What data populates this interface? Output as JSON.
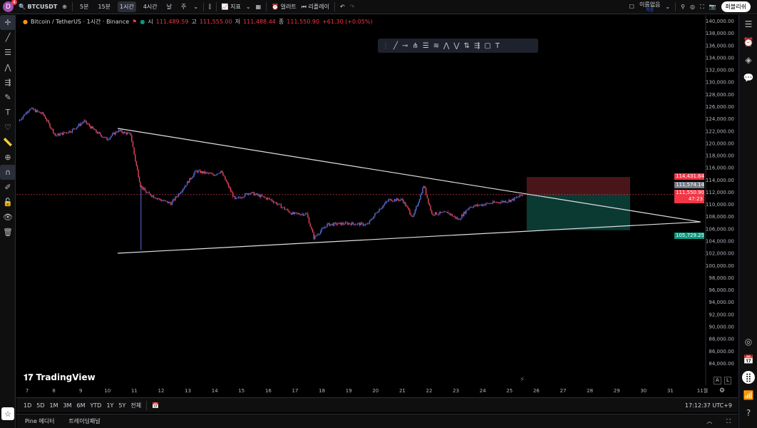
{
  "topbar": {
    "avatar_letter": "D",
    "notification_count": "4",
    "symbol": "BTCUSDT",
    "intervals": [
      "5분",
      "15분",
      "1시간",
      "4시간",
      "날",
      "주"
    ],
    "active_interval": "1시간",
    "indicators_label": "지표",
    "alerts_label": "얼러트",
    "replay_label": "리플레이",
    "layout_name": "이름없음",
    "layout_sub": "저장",
    "publish_label": "퍼블리쉬"
  },
  "legend": {
    "title": "Bitcoin / TetherUS · 1시간 · Binance",
    "open_label": "시",
    "open": "111,489.59",
    "high_label": "고",
    "high": "111,555.00",
    "low_label": "저",
    "low": "111,488.44",
    "close_label": "종",
    "close": "111,550.90",
    "change": "+61.30 (+0.05%)"
  },
  "price_labels": {
    "target": "114,431.64",
    "last": "111,574.14",
    "current": "111,550.90",
    "countdown": "47:23",
    "stop": "105,729.25"
  },
  "watermark": "TradingView",
  "range_buttons": [
    "1D",
    "5D",
    "1M",
    "3M",
    "6M",
    "YTD",
    "1Y",
    "5Y",
    "전체"
  ],
  "clock": "17:12:37 UTC+9",
  "bottom_tabs": [
    "Pine 에디터",
    "트레이딩패널"
  ],
  "axis_scale_buttons": [
    "A",
    "L"
  ],
  "colors": {
    "up": "#5b6fe0",
    "down": "#e8455a",
    "target_zone": "#4a1519",
    "stop_zone": "#0b3a32",
    "label_red": "#f23645",
    "label_green": "#089981"
  },
  "chart_data": {
    "type": "candlestick",
    "interval": "1h",
    "ylim": [
      83000,
      141000
    ],
    "yticks": [
      140000,
      138000,
      136000,
      134000,
      132000,
      130000,
      128000,
      126000,
      124000,
      122000,
      120000,
      118000,
      116000,
      114000,
      112000,
      110000,
      108000,
      106000,
      104000,
      102000,
      100000,
      98000,
      96000,
      94000,
      92000,
      90000,
      88000,
      86000,
      84000
    ],
    "xlim": [
      6.7,
      32.8
    ],
    "xticks": [
      "7",
      "8",
      "9",
      "10",
      "11",
      "12",
      "13",
      "14",
      "15",
      "16",
      "17",
      "18",
      "19",
      "20",
      "21",
      "22",
      "23",
      "24",
      "25",
      "26",
      "27",
      "28",
      "29",
      "30",
      "31",
      "11월"
    ],
    "price_path": [
      [
        6.68,
        123550
      ],
      [
        7.1,
        125650
      ],
      [
        7.6,
        124700
      ],
      [
        8.06,
        121200
      ],
      [
        8.65,
        122000
      ],
      [
        9.13,
        123550
      ],
      [
        9.58,
        121800
      ],
      [
        9.98,
        120600
      ],
      [
        10.38,
        122000
      ],
      [
        10.86,
        121400
      ],
      [
        11.04,
        117100
      ],
      [
        11.23,
        113050
      ],
      [
        11.44,
        111900
      ],
      [
        11.97,
        110700
      ],
      [
        12.37,
        110100
      ],
      [
        12.9,
        113050
      ],
      [
        13.3,
        115400
      ],
      [
        13.97,
        114800
      ],
      [
        14.23,
        115400
      ],
      [
        14.76,
        110700
      ],
      [
        15.3,
        111900
      ],
      [
        16.1,
        110700
      ],
      [
        16.9,
        108400
      ],
      [
        17.43,
        108400
      ],
      [
        17.7,
        104500
      ],
      [
        18.2,
        106650
      ],
      [
        19.0,
        106850
      ],
      [
        19.7,
        106650
      ],
      [
        20.1,
        109000
      ],
      [
        20.5,
        110700
      ],
      [
        21.0,
        110700
      ],
      [
        21.4,
        107800
      ],
      [
        21.8,
        113050
      ],
      [
        22.1,
        108400
      ],
      [
        22.7,
        108600
      ],
      [
        23.1,
        107450
      ],
      [
        23.5,
        109550
      ],
      [
        24.3,
        110150
      ],
      [
        24.9,
        110500
      ],
      [
        25.1,
        110700
      ],
      [
        25.5,
        111550
      ]
    ],
    "wick_low": {
      "day": 11.25,
      "price": 102500
    },
    "trendlines": [
      {
        "from": [
          10.38,
          122380
        ],
        "to": [
          32.13,
          107090
        ]
      },
      {
        "from": [
          10.38,
          101960
        ],
        "to": [
          32.13,
          107090
        ]
      }
    ],
    "position": {
      "from_day": 25.64,
      "to_day": 29.5,
      "entry": 111574.14,
      "target": 114431.64,
      "stop": 105729.25
    }
  }
}
